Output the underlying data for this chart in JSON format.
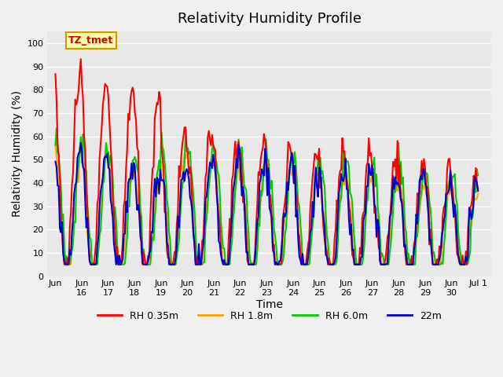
{
  "title": "Relativity Humidity Profile",
  "ylabel": "Relativity Humidity (%)",
  "xlabel": "Time",
  "ylim": [
    0,
    105
  ],
  "xlim_days": 15.5,
  "bg_color": "#e8e8e8",
  "plot_bg": "#e8e8e8",
  "colors": {
    "RH 0.35m": "#ff0000",
    "RH 1.8m": "#ffa500",
    "RH 6.0m": "#00cc00",
    "22m": "#0000cc"
  },
  "legend_labels": [
    "RH 0.35m",
    "RH 1.8m",
    "RH 6.0m",
    "22m"
  ],
  "annotation_text": "TZ_tmet",
  "annotation_bg": "#ffffaa",
  "annotation_border": "#cc9900",
  "tick_labels": [
    "Jun 16",
    "Jun 17",
    "Jun 18",
    "Jun 19",
    "Jun 20",
    "Jun 21",
    "Jun 22",
    "Jun 23",
    "Jun 24",
    "Jun 25",
    "Jun 26",
    "Jun 27",
    "Jun 28",
    "Jun 29",
    "Jun 30",
    "Jul 1"
  ],
  "title_fontsize": 13,
  "label_fontsize": 10
}
